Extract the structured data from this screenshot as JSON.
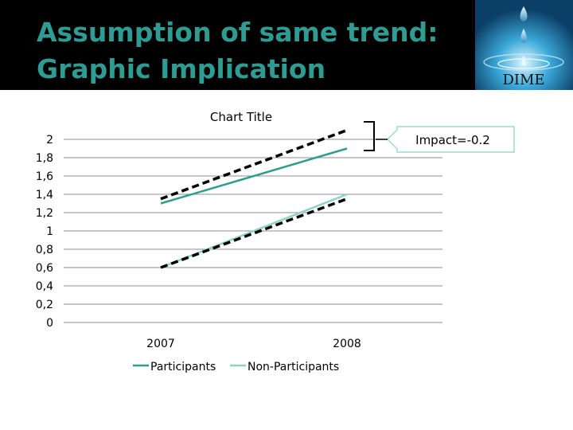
{
  "slide": {
    "title_line1": "Assumption of same trend:",
    "title_line2": "Graphic Implication",
    "logo_text": "DIME"
  },
  "chart_data": {
    "type": "line",
    "title": "Chart Title",
    "categories": [
      "2007",
      "2008"
    ],
    "series": [
      {
        "name": "Participants",
        "values": [
          1.3,
          1.9
        ],
        "color": "#2e9c92"
      },
      {
        "name": "Non-Participants",
        "values": [
          0.6,
          1.4
        ],
        "color": "#8fd3c8"
      }
    ],
    "assumed_trend_lines": [
      {
        "values": [
          1.35,
          2.1
        ],
        "style": "dashed",
        "color": "#000000"
      },
      {
        "values": [
          0.6,
          1.35
        ],
        "style": "dashed",
        "color": "#000000"
      }
    ],
    "ylim": [
      0,
      2
    ],
    "yticks": [
      "0",
      "0,2",
      "0,4",
      "0,6",
      "0,8",
      "1",
      "1,2",
      "1,4",
      "1,6",
      "1,8",
      "2"
    ],
    "grid": true,
    "legend": "bottom",
    "annotation": "Impact=-0.2"
  }
}
